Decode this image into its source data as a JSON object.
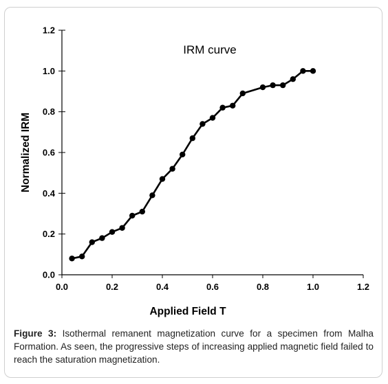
{
  "chart_data": {
    "type": "line",
    "title": "IRM curve",
    "xlabel": "Applied Field T",
    "ylabel": "Normalized IRM",
    "xlim": [
      0.0,
      1.2
    ],
    "ylim": [
      0.0,
      1.2
    ],
    "xticks": [
      "0.0",
      "0.2",
      "0.4",
      "0.6",
      "0.8",
      "1.0",
      "1.2"
    ],
    "yticks": [
      "0.0",
      "0.2",
      "0.4",
      "0.6",
      "0.8",
      "1.0",
      "1.2"
    ],
    "grid": false,
    "series": [
      {
        "x": [
          0.04,
          0.08,
          0.12,
          0.16,
          0.2,
          0.24,
          0.28,
          0.32,
          0.36,
          0.4,
          0.44,
          0.48,
          0.52,
          0.56,
          0.6,
          0.64,
          0.68,
          0.72,
          0.8,
          0.84,
          0.88,
          0.92,
          0.96,
          1.0
        ],
        "values": [
          0.08,
          0.09,
          0.16,
          0.18,
          0.21,
          0.23,
          0.29,
          0.31,
          0.39,
          0.47,
          0.52,
          0.59,
          0.67,
          0.74,
          0.77,
          0.82,
          0.83,
          0.89,
          0.92,
          0.93,
          0.93,
          0.96,
          1.0,
          1.0
        ]
      }
    ]
  },
  "caption": {
    "label": "Figure 3:",
    "text": " Isothermal remanent magnetization curve for a specimen from Malha Formation. As seen, the progressive steps of increasing applied magnetic field failed to reach the saturation magnetization."
  }
}
